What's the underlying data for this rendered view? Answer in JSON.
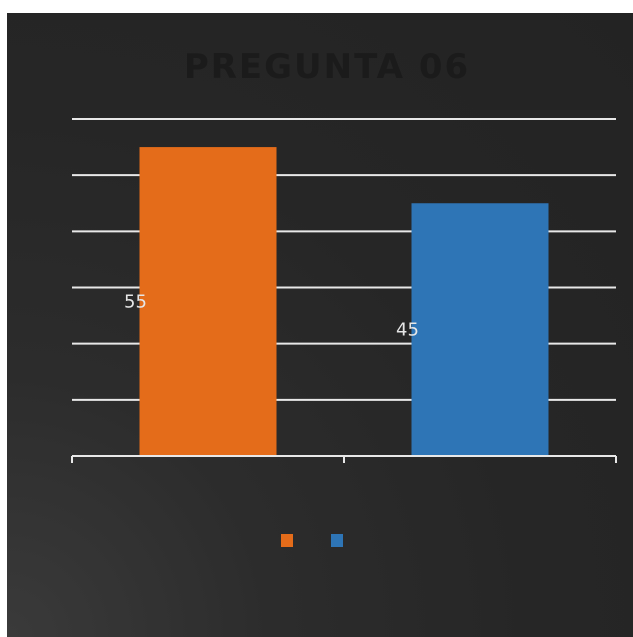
{
  "chart_data": {
    "type": "bar",
    "title": "PREGUNTA 06",
    "categories": [
      "",
      ""
    ],
    "values": [
      55,
      45
    ],
    "data_labels": [
      "55",
      "45"
    ],
    "ylim": [
      0,
      60
    ],
    "y_step": 10,
    "grid": true,
    "legend": "bottom",
    "xlabel": "",
    "ylabel": ""
  },
  "colors": {
    "background": "#252525",
    "bars": [
      "#e46c1a",
      "#2e75b6"
    ],
    "grid": "#e8e8e8",
    "title": "#1b1b1b",
    "labels": "#e6e6e6"
  }
}
